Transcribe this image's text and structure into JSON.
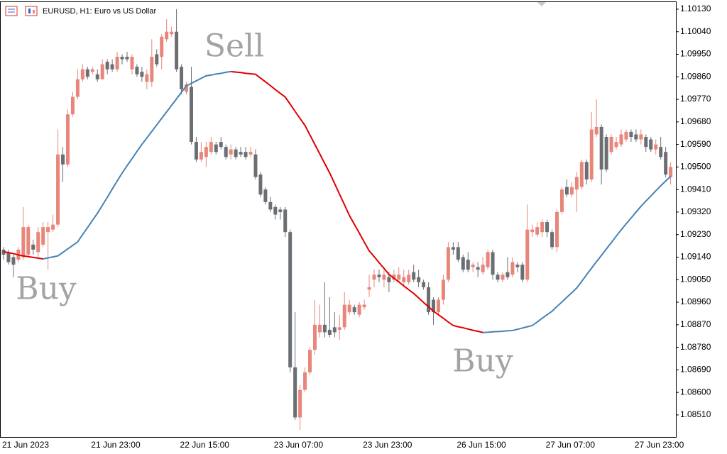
{
  "chart_data": {
    "type": "candlestick",
    "title": "EURUSD, H1:  Euro vs US Dollar",
    "annotations": [
      "Sell",
      "Buy",
      "Buy"
    ],
    "up_color": "#e8867b",
    "down_color": "#6b6e73",
    "categories": [
      "21 Jun 2023",
      null,
      null,
      null,
      null,
      null,
      null,
      null,
      null,
      null,
      null,
      null,
      null,
      null,
      null,
      null,
      null,
      null,
      "21 Jun 23:00",
      null,
      null,
      null,
      null,
      null,
      null,
      null,
      null,
      null,
      null,
      null,
      null,
      null,
      null,
      null,
      null,
      null,
      "22 Jun 15:00",
      null,
      null,
      null,
      null,
      null,
      null,
      null,
      null,
      null,
      null,
      null,
      null,
      null,
      null,
      null,
      null,
      null,
      null,
      "23 Jun 07:00",
      null,
      null,
      null,
      null,
      null,
      null,
      null,
      null,
      null,
      null,
      null,
      null,
      null,
      null,
      null,
      null,
      null,
      "23 Jun 23:00",
      null,
      null,
      null,
      null,
      null,
      null,
      null,
      null,
      null,
      null,
      null,
      null,
      null,
      null,
      null,
      null,
      null,
      null,
      "26 Jun 15:00",
      null,
      null,
      null,
      null,
      null,
      null,
      null,
      null,
      null,
      null,
      null,
      null,
      null,
      null,
      null,
      null,
      null,
      "27 Jun 07:00",
      null,
      null,
      null,
      null,
      null,
      null,
      null,
      null,
      null,
      null,
      null,
      null,
      null,
      null,
      null,
      null,
      null,
      "27 Jun 23:00",
      null,
      null,
      null,
      null,
      null,
      null,
      null
    ],
    "ohlc": [
      [
        1.0917,
        1.0918,
        1.0913,
        1.0915
      ],
      [
        1.0916,
        1.0917,
        1.0911,
        1.0912
      ],
      [
        1.0914,
        1.0915,
        1.0906,
        1.0911
      ],
      [
        1.0913,
        1.0918,
        1.0912,
        1.0917
      ],
      [
        1.0914,
        1.0934,
        1.0913,
        1.0926
      ],
      [
        1.0915,
        1.0927,
        1.0914,
        1.0926
      ],
      [
        1.0919,
        1.0921,
        1.0915,
        1.0917
      ],
      [
        1.0916,
        1.0926,
        1.0914,
        1.0924
      ],
      [
        1.0919,
        1.0928,
        1.0918,
        1.0926
      ],
      [
        1.0924,
        1.0928,
        1.0909,
        1.0926
      ],
      [
        1.0925,
        1.0931,
        1.0924,
        1.0927
      ],
      [
        1.0927,
        1.0965,
        1.0926,
        1.0955
      ],
      [
        1.0955,
        1.0958,
        1.0944,
        1.0951
      ],
      [
        1.0951,
        1.0973,
        1.095,
        1.0971
      ],
      [
        1.0971,
        1.098,
        1.097,
        1.0978
      ],
      [
        1.0978,
        1.0989,
        1.0977,
        1.0985
      ],
      [
        1.0985,
        1.0991,
        1.0984,
        1.0989
      ],
      [
        1.0989,
        1.099,
        1.0985,
        1.0986
      ],
      [
        1.0988,
        1.099,
        1.0987,
        1.0989
      ],
      [
        1.0987,
        1.0989,
        1.0984,
        1.0985
      ],
      [
        1.0985,
        1.0993,
        1.0985,
        1.0991
      ],
      [
        1.0992,
        1.0993,
        1.0987,
        1.0989
      ],
      [
        1.0991,
        1.0993,
        1.0988,
        1.0989
      ],
      [
        1.0989,
        1.0996,
        1.0988,
        1.0994
      ],
      [
        1.0994,
        1.0995,
        1.0991,
        1.0993
      ],
      [
        1.0994,
        1.0996,
        1.0992,
        1.0993
      ],
      [
        1.0989,
        1.0995,
        1.0987,
        1.0994
      ],
      [
        1.099,
        1.0991,
        1.0986,
        1.0987
      ],
      [
        1.0988,
        1.099,
        1.0984,
        1.0986
      ],
      [
        1.0984,
        1.0989,
        1.0981,
        1.0987
      ],
      [
        1.0984,
        1.1001,
        1.0982,
        1.0994
      ],
      [
        1.0995,
        1.0997,
        1.099,
        1.0991
      ],
      [
        1.0994,
        1.1003,
        1.0989,
        1.1002
      ],
      [
        1.1001,
        1.1009,
        1.1,
        1.1004
      ],
      [
        1.1003,
        1.1006,
        1.1002,
        1.1004
      ],
      [
        1.1004,
        1.1013,
        1.0988,
        1.0989
      ],
      [
        1.099,
        1.0991,
        1.0979,
        1.0981
      ],
      [
        1.098,
        1.0984,
        1.0979,
        1.0983
      ],
      [
        1.0982,
        1.099,
        1.0959,
        1.096
      ],
      [
        1.096,
        1.0962,
        1.0952,
        1.0953
      ],
      [
        1.0953,
        1.096,
        1.0952,
        1.0956
      ],
      [
        1.0954,
        1.096,
        1.095,
        1.0958
      ],
      [
        1.0956,
        1.0962,
        1.0955,
        1.096
      ],
      [
        1.0959,
        1.096,
        1.0955,
        1.0956
      ],
      [
        1.096,
        1.0962,
        1.0957,
        1.0958
      ],
      [
        1.0958,
        1.0959,
        1.0953,
        1.0954
      ],
      [
        1.0955,
        1.0959,
        1.0953,
        1.0957
      ],
      [
        1.0957,
        1.0958,
        1.0953,
        1.0954
      ],
      [
        1.0956,
        1.0958,
        1.0954,
        1.0955
      ],
      [
        1.0956,
        1.0958,
        1.0953,
        1.0954
      ],
      [
        1.0955,
        1.0958,
        1.0954,
        1.0956
      ],
      [
        1.0955,
        1.0957,
        1.0945,
        1.0946
      ],
      [
        1.0947,
        1.0948,
        1.0938,
        1.0939
      ],
      [
        1.0941,
        1.0942,
        1.0935,
        1.0936
      ],
      [
        1.0936,
        1.0938,
        1.0932,
        1.0933
      ],
      [
        1.0934,
        1.0935,
        1.0929,
        1.0931
      ],
      [
        1.0933,
        1.0934,
        1.0929,
        1.0932
      ],
      [
        1.0933,
        1.0934,
        1.0922,
        1.0924
      ],
      [
        1.0924,
        1.0925,
        1.0868,
        1.087
      ],
      [
        1.087,
        1.0892,
        1.0849,
        1.085
      ],
      [
        1.085,
        1.0863,
        1.0845,
        1.0861
      ],
      [
        1.0861,
        1.087,
        1.086,
        1.0868
      ],
      [
        1.0868,
        1.0878,
        1.0867,
        1.0877
      ],
      [
        1.0877,
        1.0897,
        1.0875,
        1.0887
      ],
      [
        1.0884,
        1.0895,
        1.0882,
        1.0887
      ],
      [
        1.0887,
        1.0904,
        1.0882,
        1.0884
      ],
      [
        1.0885,
        1.0898,
        1.0882,
        1.0883
      ],
      [
        1.0886,
        1.0892,
        1.0882,
        1.0884
      ],
      [
        1.0885,
        1.0891,
        1.0881,
        1.0886
      ],
      [
        1.0886,
        1.09,
        1.0885,
        1.0895
      ],
      [
        1.0892,
        1.0897,
        1.0891,
        1.0895
      ],
      [
        1.0894,
        1.0895,
        1.0891,
        1.0892
      ],
      [
        1.0891,
        1.0896,
        1.089,
        1.0895
      ],
      [
        1.0894,
        1.0897,
        1.0893,
        1.0895
      ],
      [
        1.0901,
        1.0907,
        1.0898,
        1.0902
      ],
      [
        1.0905,
        1.0909,
        1.0902,
        1.0907
      ],
      [
        1.0907,
        1.0909,
        1.0904,
        1.0906
      ],
      [
        1.0905,
        1.0909,
        1.0902,
        1.0907
      ],
      [
        1.0906,
        1.0908,
        1.09,
        1.0904
      ],
      [
        1.0905,
        1.0909,
        1.0904,
        1.0907
      ],
      [
        1.0905,
        1.091,
        1.0904,
        1.0907
      ],
      [
        1.0904,
        1.0909,
        1.0902,
        1.0906
      ],
      [
        1.0904,
        1.0909,
        1.0903,
        1.0907
      ],
      [
        1.0908,
        1.0911,
        1.0904,
        1.0905
      ],
      [
        1.0906,
        1.0909,
        1.0902,
        1.0904
      ],
      [
        1.0904,
        1.0905,
        1.0901,
        1.0902
      ],
      [
        1.0902,
        1.0904,
        1.0891,
        1.0892
      ],
      [
        1.0897,
        1.0898,
        1.0887,
        1.0892
      ],
      [
        1.0892,
        1.0898,
        1.0891,
        1.0897
      ],
      [
        1.0897,
        1.0907,
        1.0895,
        1.0905
      ],
      [
        1.0905,
        1.092,
        1.0904,
        1.0918
      ],
      [
        1.0918,
        1.092,
        1.0915,
        1.0917
      ],
      [
        1.0918,
        1.092,
        1.0912,
        1.0913
      ],
      [
        1.0914,
        1.0915,
        1.0908,
        1.0909
      ],
      [
        1.0913,
        1.0916,
        1.0908,
        1.0909
      ],
      [
        1.091,
        1.0912,
        1.0908,
        1.0911
      ],
      [
        1.091,
        1.0912,
        1.0906,
        1.0909
      ],
      [
        1.0908,
        1.0914,
        1.0907,
        1.0911
      ],
      [
        1.091,
        1.0917,
        1.0909,
        1.0916
      ],
      [
        1.0916,
        1.0917,
        1.0905,
        1.0907
      ],
      [
        1.0907,
        1.0908,
        1.0904,
        1.0905
      ],
      [
        1.0905,
        1.0908,
        1.0904,
        1.0907
      ],
      [
        1.0908,
        1.0914,
        1.0905,
        1.0906
      ],
      [
        1.0907,
        1.0914,
        1.0906,
        1.0912
      ],
      [
        1.0911,
        1.0912,
        1.0908,
        1.091
      ],
      [
        1.0911,
        1.0912,
        1.0904,
        1.0905
      ],
      [
        1.0905,
        1.0935,
        1.0904,
        1.0925
      ],
      [
        1.0924,
        1.0927,
        1.0922,
        1.0925
      ],
      [
        1.0923,
        1.0928,
        1.0922,
        1.0926
      ],
      [
        1.0924,
        1.0929,
        1.0922,
        1.0928
      ],
      [
        1.0928,
        1.0929,
        1.0922,
        1.0924
      ],
      [
        1.0924,
        1.0925,
        1.0917,
        1.0918
      ],
      [
        1.0918,
        1.0933,
        1.0916,
        1.0932
      ],
      [
        1.0932,
        1.0942,
        1.0931,
        1.0941
      ],
      [
        1.0942,
        1.0945,
        1.0938,
        1.0939
      ],
      [
        1.0939,
        1.0944,
        1.0938,
        1.0942
      ],
      [
        1.0941,
        1.0948,
        1.0932,
        1.0946
      ],
      [
        1.0942,
        1.0953,
        1.0941,
        1.0952
      ],
      [
        1.0952,
        1.0953,
        1.0943,
        1.0945
      ],
      [
        1.0945,
        1.0972,
        1.0944,
        1.0965
      ],
      [
        1.0963,
        1.0977,
        1.0962,
        1.0966
      ],
      [
        1.0966,
        1.0967,
        1.0943,
        1.0949
      ],
      [
        1.0962,
        1.0963,
        1.0948,
        1.0949
      ],
      [
        1.0956,
        1.0963,
        1.0955,
        1.0962
      ],
      [
        1.0958,
        1.0962,
        1.0957,
        1.096
      ],
      [
        1.0959,
        1.0965,
        1.0958,
        1.0963
      ],
      [
        1.0961,
        1.0965,
        1.096,
        1.0964
      ],
      [
        1.0964,
        1.0965,
        1.096,
        1.0962
      ],
      [
        1.0963,
        1.0965,
        1.096,
        1.0961
      ],
      [
        1.0961,
        1.0965,
        1.0959,
        1.0963
      ],
      [
        1.0962,
        1.0963,
        1.0956,
        1.0958
      ],
      [
        1.0961,
        1.0962,
        1.0956,
        1.0957
      ],
      [
        1.0957,
        1.0961,
        1.0955,
        1.0959
      ],
      [
        1.0958,
        1.0962,
        1.0953,
        1.0954
      ],
      [
        1.0956,
        1.0958,
        1.0946,
        1.0947
      ],
      [
        1.0946,
        1.0952,
        1.0943,
        1.095
      ]
    ],
    "indicator": {
      "rising_color": "#4682b4",
      "falling_color": "#e00000",
      "values": [
        1.09162,
        1.09158,
        1.09154,
        1.09149,
        1.09145,
        1.09142,
        1.09139,
        1.09136,
        1.09133,
        1.09137,
        1.09141,
        1.09145,
        1.09159,
        1.09173,
        1.09187,
        1.09201,
        1.0923,
        1.09258,
        1.09287,
        1.09315,
        1.09347,
        1.09379,
        1.09412,
        1.09444,
        1.09476,
        1.09505,
        1.09533,
        1.09562,
        1.0959,
        1.09616,
        1.09642,
        1.09668,
        1.09694,
        1.0972,
        1.09746,
        1.09772,
        1.09798,
        1.09824,
        1.09834,
        1.09844,
        1.09854,
        1.09864,
        1.09867,
        1.09871,
        1.09874,
        1.09878,
        1.09881,
        1.09879,
        1.09877,
        1.09874,
        1.09872,
        1.0987,
        1.09855,
        1.0984,
        1.09825,
        1.09809,
        1.09794,
        1.09779,
        1.09751,
        1.09722,
        1.09694,
        1.09666,
        1.09628,
        1.0959,
        1.09552,
        1.09514,
        1.09476,
        1.09434,
        1.09391,
        1.09349,
        1.09306,
        1.09271,
        1.09236,
        1.092,
        1.09165,
        1.09142,
        1.09118,
        1.09095,
        1.09071,
        1.09056,
        1.09041,
        1.09025,
        1.0901,
        1.08995,
        1.08977,
        1.08959,
        1.08942,
        1.08924,
        1.0891,
        1.08896,
        1.08881,
        1.08867,
        1.08862,
        1.08858,
        1.08853,
        1.08848,
        1.08844,
        1.08839,
        1.0884,
        1.08842,
        1.08843,
        1.08844,
        1.08846,
        1.08847,
        1.08852,
        1.08857,
        1.08862,
        1.08867,
        1.08881,
        1.08896,
        1.0891,
        1.08924,
        1.08943,
        1.08961,
        1.0898,
        1.08998,
        1.09017,
        1.09043,
        1.0907,
        1.09096,
        1.09122,
        1.09147,
        1.09173,
        1.09198,
        1.09224,
        1.09249,
        1.09273,
        1.09296,
        1.0932,
        1.09343,
        1.09364,
        1.09384,
        1.09405,
        1.09425,
        1.09444,
        1.09462
      ]
    },
    "ylim": [
      1.08422,
      1.10161
    ],
    "yticks": [
      {
        "value": 1.1013,
        "label": "1.10130"
      },
      {
        "value": 1.1004,
        "label": "1.10040"
      },
      {
        "value": 1.0995,
        "label": "1.09950"
      },
      {
        "value": 1.0986,
        "label": "1.09860"
      },
      {
        "value": 1.0977,
        "label": "1.09770"
      },
      {
        "value": 1.0968,
        "label": "1.09680"
      },
      {
        "value": 1.0959,
        "label": "1.09590"
      },
      {
        "value": 1.095,
        "label": "1.09500"
      },
      {
        "value": 1.0941,
        "label": "1.09410"
      },
      {
        "value": 1.0932,
        "label": "1.09320"
      },
      {
        "value": 1.0923,
        "label": "1.09230"
      },
      {
        "value": 1.0914,
        "label": "1.09140"
      },
      {
        "value": 1.0905,
        "label": "1.09050"
      },
      {
        "value": 1.0896,
        "label": "1.08960"
      },
      {
        "value": 1.0887,
        "label": "1.08870"
      },
      {
        "value": 1.0878,
        "label": "1.08780"
      },
      {
        "value": 1.0869,
        "label": "1.08690"
      },
      {
        "value": 1.086,
        "label": "1.08600"
      },
      {
        "value": 1.0851,
        "label": "1.08510"
      }
    ]
  }
}
